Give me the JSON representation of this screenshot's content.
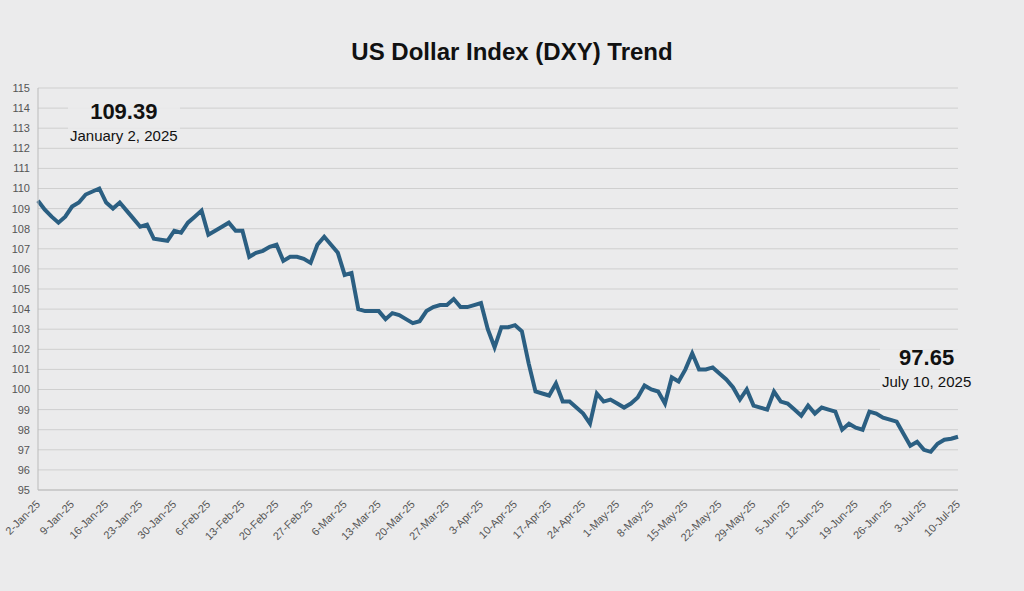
{
  "chart_data": {
    "type": "line",
    "title": "US Dollar Index (DXY) Trend",
    "categories": [
      "2-Jan-25",
      null,
      null,
      null,
      null,
      "9-Jan-25",
      null,
      null,
      null,
      null,
      "16-Jan-25",
      null,
      null,
      null,
      null,
      "23-Jan-25",
      null,
      null,
      null,
      null,
      "30-Jan-25",
      null,
      null,
      null,
      null,
      "6-Feb-25",
      null,
      null,
      null,
      null,
      "13-Feb-25",
      null,
      null,
      null,
      null,
      "20-Feb-25",
      null,
      null,
      null,
      null,
      "27-Feb-25",
      null,
      null,
      null,
      null,
      "6-Mar-25",
      null,
      null,
      null,
      null,
      "13-Mar-25",
      null,
      null,
      null,
      null,
      "20-Mar-25",
      null,
      null,
      null,
      null,
      "27-Mar-25",
      null,
      null,
      null,
      null,
      "3-Apr-25",
      null,
      null,
      null,
      null,
      "10-Apr-25",
      null,
      null,
      null,
      null,
      "17-Apr-25",
      null,
      null,
      null,
      null,
      "24-Apr-25",
      null,
      null,
      null,
      null,
      "1-May-25",
      null,
      null,
      null,
      null,
      "8-May-25",
      null,
      null,
      null,
      null,
      "15-May-25",
      null,
      null,
      null,
      null,
      "22-May-25",
      null,
      null,
      null,
      null,
      "29-May-25",
      null,
      null,
      null,
      null,
      "5-Jun-25",
      null,
      null,
      null,
      null,
      "12-Jun-25",
      null,
      null,
      null,
      null,
      "19-Jun-25",
      null,
      null,
      null,
      null,
      "26-Jun-25",
      null,
      null,
      null,
      null,
      "3-Jul-25",
      null,
      null,
      null,
      null,
      "10-Jul-25"
    ],
    "values": [
      109.39,
      108.95,
      108.6,
      108.3,
      108.6,
      109.1,
      109.3,
      109.7,
      109.85,
      110.0,
      109.3,
      109.0,
      109.3,
      108.9,
      108.5,
      108.1,
      108.2,
      107.5,
      107.45,
      107.4,
      107.9,
      107.8,
      108.3,
      108.6,
      108.9,
      107.7,
      107.9,
      108.1,
      108.3,
      107.9,
      107.9,
      106.6,
      106.8,
      106.9,
      107.1,
      107.2,
      106.4,
      106.6,
      106.6,
      106.5,
      106.3,
      107.2,
      107.6,
      107.2,
      106.8,
      105.7,
      105.8,
      104.0,
      103.9,
      103.9,
      103.9,
      103.5,
      103.8,
      103.7,
      103.5,
      103.3,
      103.4,
      103.9,
      104.1,
      104.2,
      104.2,
      104.5,
      104.1,
      104.1,
      104.2,
      104.3,
      103.0,
      102.1,
      103.1,
      103.1,
      103.2,
      102.9,
      101.3,
      99.9,
      99.8,
      99.7,
      100.3,
      99.4,
      99.4,
      99.1,
      98.8,
      98.3,
      99.8,
      99.4,
      99.5,
      99.3,
      99.1,
      99.3,
      99.6,
      100.2,
      100.0,
      99.9,
      99.3,
      100.6,
      100.4,
      101.0,
      101.8,
      101.0,
      101.0,
      101.1,
      100.8,
      100.5,
      100.1,
      99.5,
      100.0,
      99.2,
      99.1,
      99.0,
      99.9,
      99.4,
      99.3,
      99.0,
      98.7,
      99.2,
      98.8,
      99.1,
      99.0,
      98.9,
      98.0,
      98.3,
      98.1,
      98.0,
      98.9,
      98.8,
      98.6,
      98.5,
      98.4,
      97.8,
      97.2,
      97.4,
      97.0,
      96.9,
      97.3,
      97.5,
      97.55,
      97.65
    ],
    "color": "#2b5f82",
    "ylim": [
      95,
      115
    ],
    "yticks": [
      95,
      96,
      97,
      98,
      99,
      100,
      101,
      102,
      103,
      104,
      105,
      106,
      107,
      108,
      109,
      110,
      111,
      112,
      113,
      114,
      115
    ],
    "grid": true,
    "annotations": [
      {
        "text": "109.39",
        "note": "January 2, 2025"
      },
      {
        "text": "97.65",
        "note": "July 10, 2025"
      }
    ]
  }
}
